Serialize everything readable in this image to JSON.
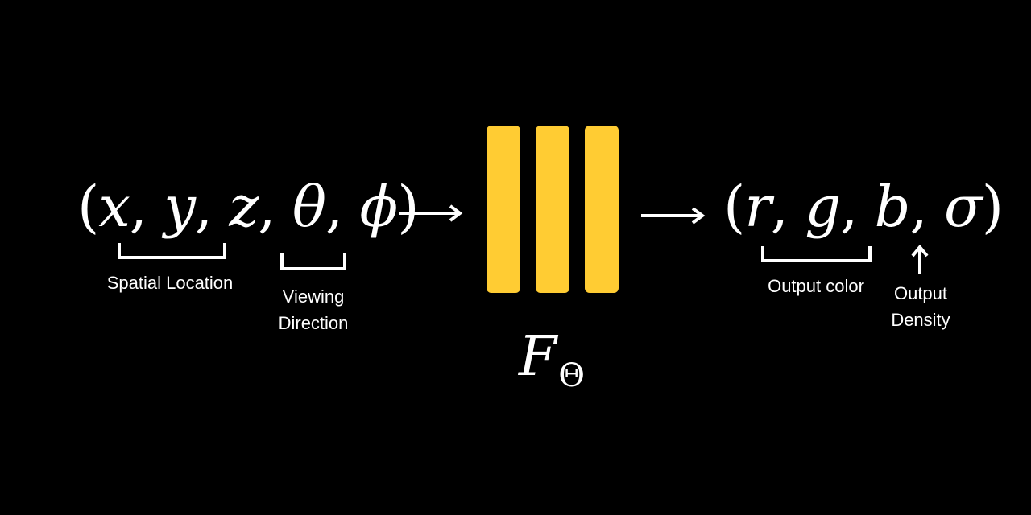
{
  "input": {
    "open": "(",
    "x": "x",
    "y": "y",
    "z": "z",
    "theta": "θ",
    "phi": "ϕ",
    "comma": ",",
    "close": ")"
  },
  "output": {
    "open": "(",
    "r": "r",
    "g": "g",
    "b": "b",
    "sigma": "σ",
    "comma": ",",
    "close": ")"
  },
  "function": {
    "symbol": "F",
    "subscript": "Θ"
  },
  "labels": {
    "spatial_location": "Spatial Location",
    "viewing_direction_line1": "Viewing",
    "viewing_direction_line2": "Direction",
    "output_color": "Output color",
    "output_density_line1": "Output",
    "output_density_line2": "Density"
  },
  "colors": {
    "background": "#000000",
    "network_bars": "#ffcc33",
    "foreground": "#ffffff"
  },
  "network": {
    "layer_count": 3
  }
}
